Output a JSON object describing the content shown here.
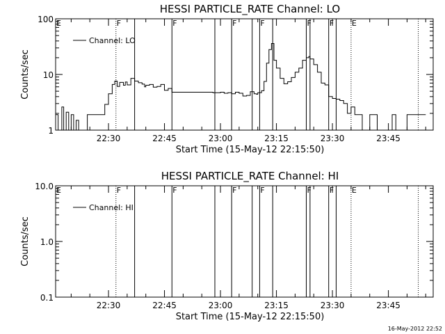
{
  "chart_data": [
    {
      "type": "line",
      "title": "HESSI PARTICLE_RATE Channel: LO",
      "xlabel": "Start Time (15-May-12 22:15:50)",
      "ylabel": "Counts/sec",
      "yscale": "log",
      "ylim": [
        1,
        100
      ],
      "ytick_labels": [
        "1",
        "10",
        "100"
      ],
      "xlim": [
        "22:15:50",
        "23:57:00"
      ],
      "xtick_labels": [
        "22:30",
        "22:45",
        "23:00",
        "23:15",
        "23:30",
        "23:45"
      ],
      "legend": "top-left",
      "grid": false,
      "series": [
        {
          "name": "Channel: LO",
          "x": [
            "22:15:50",
            "22:16:30",
            "22:17:30",
            "22:18:00",
            "22:18:40",
            "22:19:20",
            "22:20:00",
            "22:20:40",
            "22:21:20",
            "22:22:00",
            "22:23:00",
            "22:23:40",
            "22:24:20",
            "22:25:00",
            "22:26:00",
            "22:27:00",
            "22:28:00",
            "22:29:00",
            "22:30:00",
            "22:31:00",
            "22:31:40",
            "22:32:20",
            "22:33:00",
            "22:34:00",
            "22:34:30",
            "22:35:00",
            "22:35:20",
            "22:36:00",
            "22:37:00",
            "22:38:00",
            "22:39:00",
            "22:39:40",
            "22:40:00",
            "22:41:00",
            "22:42:00",
            "22:43:00",
            "22:44:00",
            "22:45:00",
            "22:46:00",
            "22:47:00",
            "22:48:00",
            "22:49:00",
            "22:50:00",
            "22:52:00",
            "22:54:00",
            "22:56:00",
            "22:58:00",
            "23:00:00",
            "23:01:00",
            "23:02:00",
            "23:03:00",
            "23:04:00",
            "23:05:00",
            "23:06:00",
            "23:07:00",
            "23:08:00",
            "23:09:00",
            "23:09:40",
            "23:10:00",
            "23:11:00",
            "23:11:40",
            "23:12:20",
            "23:13:00",
            "23:13:40",
            "23:14:20",
            "23:15:00",
            "23:16:00",
            "23:17:00",
            "23:18:00",
            "23:19:00",
            "23:20:00",
            "23:21:00",
            "23:22:00",
            "23:23:00",
            "23:23:40",
            "23:24:00",
            "23:25:00",
            "23:26:00",
            "23:27:00",
            "23:28:00",
            "23:29:00",
            "23:30:00",
            "23:31:00",
            "23:32:00",
            "23:33:00",
            "23:34:00",
            "23:35:00",
            "23:36:00",
            "23:37:00",
            "23:38:00",
            "23:40:00",
            "23:42:00",
            "23:44:00",
            "23:46:00",
            "23:47:00",
            "23:48:00",
            "23:49:00",
            "23:50:00",
            "23:51:00",
            "23:53:00",
            "23:55:00"
          ],
          "y": [
            1.9,
            1,
            2.6,
            1,
            2.1,
            1,
            1.9,
            1,
            1.5,
            1,
            1,
            1,
            1.9,
            1.9,
            1.9,
            1.9,
            1.9,
            2.9,
            4.5,
            6.6,
            7.6,
            6.1,
            7.2,
            6.4,
            7.3,
            6.5,
            6.5,
            8.5,
            7.6,
            7.1,
            6.7,
            6,
            6.4,
            6.6,
            5.9,
            6.1,
            6.6,
            5.2,
            5.6,
            4.8,
            4.8,
            4.8,
            4.8,
            4.8,
            4.8,
            4.8,
            4.7,
            4.8,
            4.6,
            4.7,
            4.5,
            4.8,
            4.6,
            4.1,
            4.2,
            4.9,
            4.5,
            4.4,
            4.7,
            5.1,
            7.5,
            16,
            28,
            36,
            18,
            13,
            8.5,
            6.8,
            7.4,
            8.8,
            11,
            13,
            18,
            20,
            21,
            19,
            15,
            11,
            7,
            6.5,
            4,
            3.7,
            3.6,
            3.4,
            3,
            2,
            2.6,
            1.9,
            1.9,
            1,
            1.9,
            1,
            1,
            1.9,
            1,
            1,
            1,
            1.9,
            1.9,
            1.9,
            1.9
          ]
        }
      ],
      "annotations": [
        {
          "label": "E",
          "time": "22:15:50",
          "style": "dotted"
        },
        {
          "label": "F",
          "time": "22:32:00",
          "style": "dotted"
        },
        {
          "label": "",
          "time": "22:37:00",
          "style": "solid"
        },
        {
          "label": "F",
          "time": "22:47:00",
          "style": "solid"
        },
        {
          "label": "",
          "time": "22:58:30",
          "style": "solid"
        },
        {
          "label": "F",
          "time": "23:03:00",
          "style": "solid"
        },
        {
          "label": "",
          "time": "23:08:30",
          "style": "solid"
        },
        {
          "label": "F",
          "time": "23:10:30",
          "style": "solid"
        },
        {
          "label": "",
          "time": "23:14:00",
          "style": "solid"
        },
        {
          "label": "F",
          "time": "23:23:00",
          "style": "solid"
        },
        {
          "label": "",
          "time": "23:24:00",
          "style": "solid"
        },
        {
          "label": "F",
          "time": "23:29:00",
          "style": "solid"
        },
        {
          "label": "",
          "time": "23:31:00",
          "style": "solid"
        },
        {
          "label": "E",
          "time": "23:35:00",
          "style": "dotted"
        },
        {
          "label": "",
          "time": "23:53:00",
          "style": "dotted"
        }
      ]
    },
    {
      "type": "line",
      "title": "HESSI PARTICLE_RATE Channel: HI",
      "xlabel": "Start Time (15-May-12 22:15:50)",
      "ylabel": "Counts/sec",
      "yscale": "log",
      "ylim": [
        0.1,
        10
      ],
      "ytick_labels": [
        "0.1",
        "1.0",
        "10.0"
      ],
      "xlim": [
        "22:15:50",
        "23:57:00"
      ],
      "xtick_labels": [
        "22:30",
        "22:45",
        "23:00",
        "23:15",
        "23:30",
        "23:45"
      ],
      "legend": "top-left",
      "grid": false,
      "series": [
        {
          "name": "Channel: HI",
          "x": [],
          "y": []
        }
      ],
      "annotations": [
        {
          "label": "E",
          "time": "22:15:50",
          "style": "dotted"
        },
        {
          "label": "F",
          "time": "22:32:00",
          "style": "dotted"
        },
        {
          "label": "",
          "time": "22:37:00",
          "style": "solid"
        },
        {
          "label": "F",
          "time": "22:47:00",
          "style": "solid"
        },
        {
          "label": "",
          "time": "22:58:30",
          "style": "solid"
        },
        {
          "label": "F",
          "time": "23:03:00",
          "style": "solid"
        },
        {
          "label": "",
          "time": "23:08:30",
          "style": "solid"
        },
        {
          "label": "F",
          "time": "23:10:30",
          "style": "solid"
        },
        {
          "label": "",
          "time": "23:14:00",
          "style": "solid"
        },
        {
          "label": "F",
          "time": "23:23:00",
          "style": "solid"
        },
        {
          "label": "",
          "time": "23:24:00",
          "style": "solid"
        },
        {
          "label": "F",
          "time": "23:29:00",
          "style": "solid"
        },
        {
          "label": "",
          "time": "23:31:00",
          "style": "solid"
        },
        {
          "label": "E",
          "time": "23:35:00",
          "style": "dotted"
        },
        {
          "label": "",
          "time": "23:53:00",
          "style": "dotted"
        }
      ]
    }
  ],
  "footer": {
    "timestamp": "16-May-2012 22:52"
  },
  "colors": {
    "background": "#ffffff",
    "ink": "#000000"
  }
}
